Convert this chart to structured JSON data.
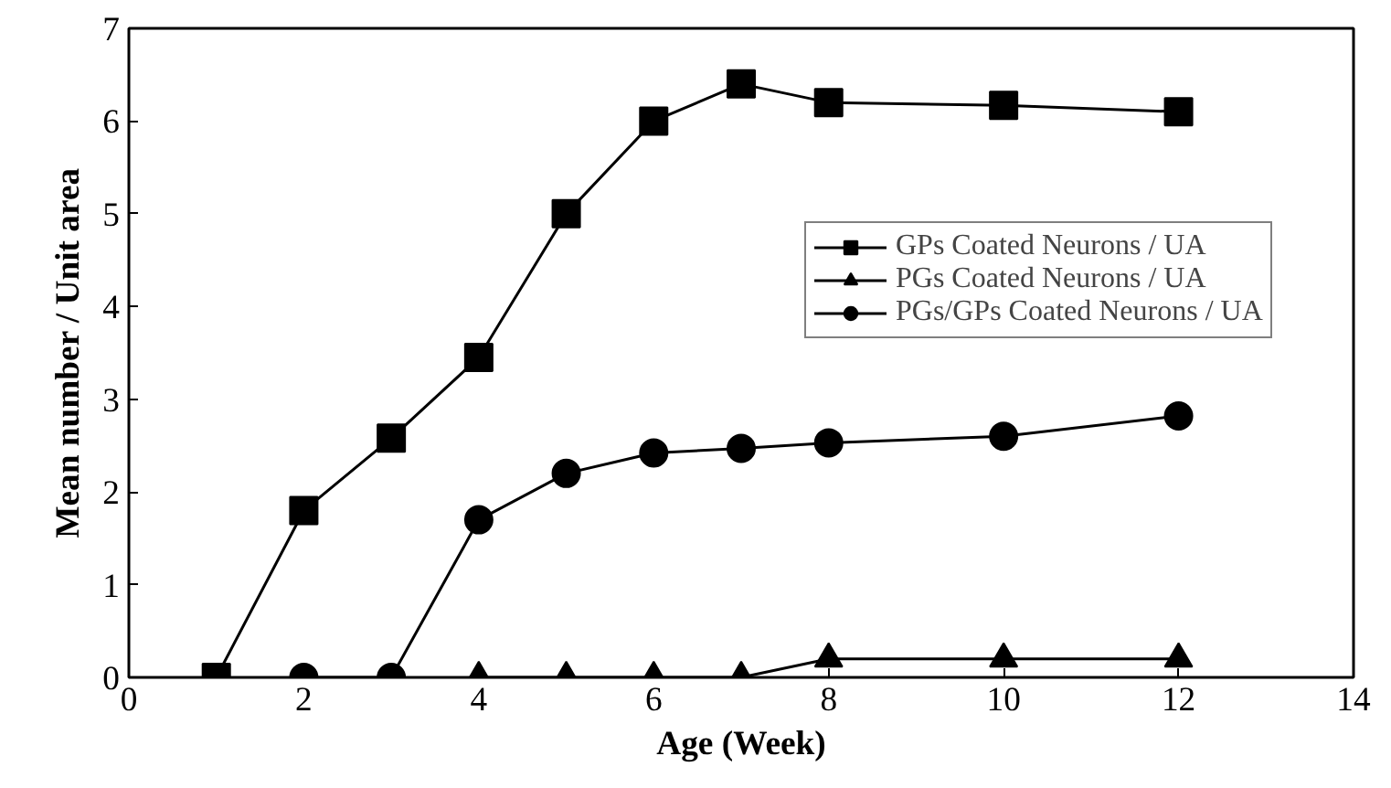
{
  "chart_data": {
    "type": "line",
    "xlabel": "Age (Week)",
    "ylabel": "Mean number / Unit area",
    "xlim": [
      0,
      14
    ],
    "ylim": [
      0,
      7
    ],
    "xticks": [
      0,
      2,
      4,
      6,
      8,
      10,
      12,
      14
    ],
    "yticks": [
      0,
      1,
      2,
      3,
      4,
      5,
      6,
      7
    ],
    "grid": false,
    "legend": "right",
    "line_style": "solid",
    "series": [
      {
        "name": "GPs Coated Neurons / UA",
        "color": "#000000",
        "marker": "square",
        "x": [
          1,
          2,
          3,
          4,
          5,
          6,
          7,
          8,
          10,
          12
        ],
        "values": [
          0,
          1.8,
          2.58,
          3.45,
          5.0,
          6.0,
          6.4,
          6.2,
          6.17,
          6.1
        ]
      },
      {
        "name": "PGs Coated Neurons / UA",
        "color": "#000000",
        "marker": "triangle",
        "x": [
          4,
          5,
          6,
          7,
          8,
          10,
          12
        ],
        "values": [
          0,
          0,
          0,
          0,
          0.2,
          0.2,
          0.2
        ]
      },
      {
        "name": "PGs/GPs Coated Neurons / UA",
        "color": "#000000",
        "marker": "circle",
        "x": [
          2,
          3,
          4,
          5,
          6,
          7,
          8,
          10,
          12
        ],
        "values": [
          0,
          0,
          1.7,
          2.2,
          2.42,
          2.47,
          2.53,
          2.6,
          2.82
        ]
      }
    ]
  }
}
